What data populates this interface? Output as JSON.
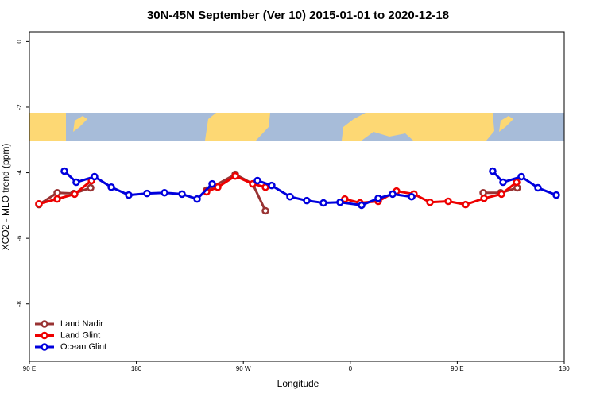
{
  "chart_data": {
    "type": "line",
    "title": "30N-45N September (Ver 10)   2015-01-01 to 2020-12-18",
    "xlabel": "Longitude",
    "ylabel": "XCO2 - MLO trend (ppm)",
    "xlim": [
      90,
      540
    ],
    "ylim": [
      -9.75,
      0.3
    ],
    "xticks": [
      {
        "value": 90,
        "label": "90 E"
      },
      180,
      {
        "value": 270,
        "label": "90 W"
      },
      {
        "value": 360,
        "label": "0"
      },
      {
        "value": 450,
        "label": "90 E"
      },
      {
        "value": 540,
        "label": "180"
      }
    ],
    "yticks": [
      0,
      -2,
      -4,
      -6,
      -8
    ],
    "legend": "bottom-left",
    "series": [
      {
        "name": "Land Nadir",
        "color": "#993333",
        "x": [
          98.0,
          113.4,
          127.4,
          141.5,
          null,
          239.1,
          263.2,
          277.9,
          288.6,
          null,
          471.8,
          486.5,
          500.5
        ],
        "values": [
          -4.97,
          -4.61,
          -4.63,
          -4.46,
          null,
          -4.53,
          -4.05,
          -4.34,
          -5.16,
          null,
          -4.61,
          -4.61,
          -4.46
        ]
      },
      {
        "name": "Land Glint",
        "color": "#ee0000",
        "x": [
          98.0,
          113.4,
          128.1,
          142.2,
          null,
          239.1,
          248.5,
          263.2,
          277.9,
          288.6,
          null,
          355.4,
          368.2,
          383.5,
          398.9,
          413.6,
          427.0,
          442.4,
          457.1,
          472.5,
          487.2,
          499.9
        ],
        "values": [
          -4.95,
          -4.8,
          -4.65,
          -4.24,
          null,
          -4.58,
          -4.44,
          -4.1,
          -4.34,
          -4.44,
          null,
          -4.8,
          -4.92,
          -4.87,
          -4.56,
          -4.65,
          -4.9,
          -4.87,
          -4.97,
          -4.78,
          -4.65,
          -4.29
        ]
      },
      {
        "name": "Ocean Glint",
        "color": "#0000dd",
        "x": [
          119.4,
          129.4,
          144.8,
          158.9,
          173.6,
          189.0,
          203.7,
          218.4,
          231.1,
          243.8,
          null,
          281.9,
          293.9,
          309.3,
          323.4,
          337.4,
          351.4,
          369.5,
          383.5,
          395.6,
          411.6,
          null,
          479.8,
          488.5,
          503.9,
          517.9,
          533.3
        ],
        "values": [
          -3.95,
          -4.29,
          -4.12,
          -4.44,
          -4.68,
          -4.63,
          -4.61,
          -4.65,
          -4.8,
          -4.34,
          null,
          -4.24,
          -4.39,
          -4.73,
          -4.85,
          -4.92,
          -4.9,
          -4.99,
          -4.78,
          -4.65,
          -4.73,
          null,
          -3.95,
          -4.29,
          -4.12,
          -4.46,
          -4.68
        ]
      }
    ]
  }
}
